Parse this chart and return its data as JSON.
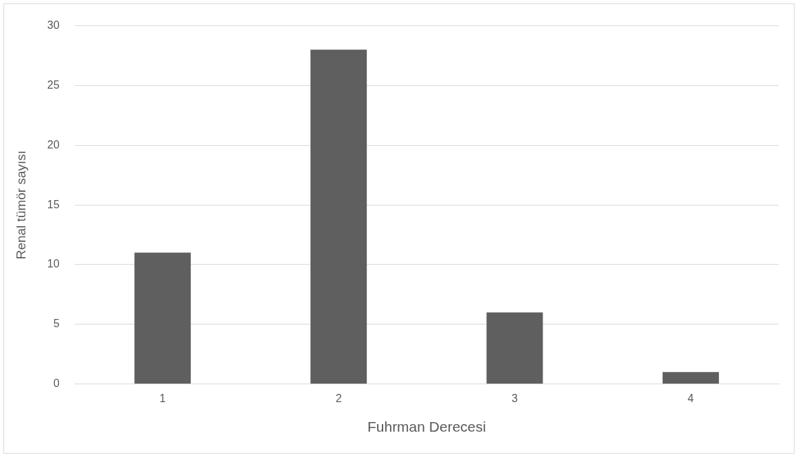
{
  "chart_data": {
    "type": "bar",
    "xlabel": "Fuhrman Derecesi",
    "ylabel": "Renal tümör sayısı",
    "categories": [
      "1",
      "2",
      "3",
      "4"
    ],
    "values": [
      11,
      28,
      6,
      1
    ],
    "color": "#5f5f5f",
    "ylim": [
      0,
      30
    ],
    "yticks": [
      0,
      5,
      10,
      15,
      20,
      25,
      30
    ],
    "grid": "y",
    "legend": false
  }
}
